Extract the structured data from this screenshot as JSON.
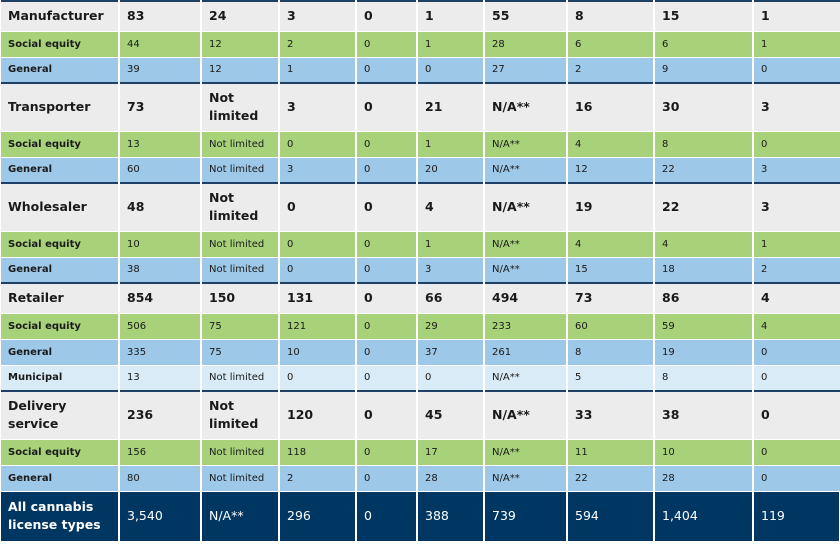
{
  "rows": [
    {
      "kind": "cat",
      "label": "Manufacturer",
      "values": [
        "83",
        "24",
        "3",
        "0",
        "1",
        "55",
        "8",
        "15",
        "1"
      ]
    },
    {
      "kind": "social",
      "label": "Social equity",
      "values": [
        "44",
        "12",
        "2",
        "0",
        "1",
        "28",
        "6",
        "6",
        "1"
      ]
    },
    {
      "kind": "general",
      "label": "General",
      "values": [
        "39",
        "12",
        "1",
        "0",
        "0",
        "27",
        "2",
        "9",
        "0"
      ]
    },
    {
      "kind": "cat",
      "label": "Transporter",
      "values": [
        "73",
        "Not limited",
        "3",
        "0",
        "21",
        "N/A**",
        "16",
        "30",
        "3"
      ]
    },
    {
      "kind": "social",
      "label": "Social equity",
      "values": [
        "13",
        "Not limited",
        "0",
        "0",
        "1",
        "N/A**",
        "4",
        "8",
        "0"
      ]
    },
    {
      "kind": "general",
      "label": "General",
      "values": [
        "60",
        "Not limited",
        "3",
        "0",
        "20",
        "N/A**",
        "12",
        "22",
        "3"
      ]
    },
    {
      "kind": "cat",
      "label": "Wholesaler",
      "values": [
        "48",
        "Not limited",
        "0",
        "0",
        "4",
        "N/A**",
        "19",
        "22",
        "3"
      ]
    },
    {
      "kind": "social",
      "label": "Social equity",
      "values": [
        "10",
        "Not limited",
        "0",
        "0",
        "1",
        "N/A**",
        "4",
        "4",
        "1"
      ]
    },
    {
      "kind": "general",
      "label": "General",
      "values": [
        "38",
        "Not limited",
        "0",
        "0",
        "3",
        "N/A**",
        "15",
        "18",
        "2"
      ]
    },
    {
      "kind": "cat",
      "label": "Retailer",
      "values": [
        "854",
        "150",
        "131",
        "0",
        "66",
        "494",
        "73",
        "86",
        "4"
      ]
    },
    {
      "kind": "social",
      "label": "Social equity",
      "values": [
        "506",
        "75",
        "121",
        "0",
        "29",
        "233",
        "60",
        "59",
        "4"
      ]
    },
    {
      "kind": "general",
      "label": "General",
      "values": [
        "335",
        "75",
        "10",
        "0",
        "37",
        "261",
        "8",
        "19",
        "0"
      ]
    },
    {
      "kind": "municipal",
      "label": "Municipal",
      "values": [
        "13",
        "Not limited",
        "0",
        "0",
        "0",
        "N/A**",
        "5",
        "8",
        "0"
      ]
    },
    {
      "kind": "cat",
      "label": "Delivery service",
      "values": [
        "236",
        "Not limited",
        "120",
        "0",
        "45",
        "N/A**",
        "33",
        "38",
        "0"
      ]
    },
    {
      "kind": "social",
      "label": "Social equity",
      "values": [
        "156",
        "Not limited",
        "118",
        "0",
        "17",
        "N/A**",
        "11",
        "10",
        "0"
      ]
    },
    {
      "kind": "general",
      "label": "General",
      "values": [
        "80",
        "Not limited",
        "2",
        "0",
        "28",
        "N/A**",
        "22",
        "28",
        "0"
      ]
    },
    {
      "kind": "total",
      "label": "All cannabis license types",
      "values": [
        "3,540",
        "N/A**",
        "296",
        "0",
        "388",
        "739",
        "594",
        "1,404",
        "119"
      ]
    }
  ],
  "colors": {
    "category_bg": "#ececec",
    "social_equity_bg": "#a8d27a",
    "general_bg": "#9dc8e8",
    "municipal_bg": "#d8ebf7",
    "total_bg": "#003662",
    "divider": "#1e3f66"
  }
}
